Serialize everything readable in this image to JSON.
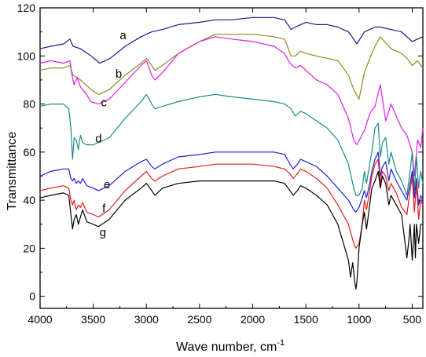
{
  "chart_data": {
    "type": "line",
    "title": "",
    "xlabel": "Wave number, cm",
    "xlabel_superscript": "-1",
    "ylabel": "Transmittance",
    "xlim": [
      4000,
      400
    ],
    "ylim": [
      -5,
      120
    ],
    "x_ticks": [
      4000,
      3500,
      3000,
      2500,
      2000,
      1500,
      1000,
      500
    ],
    "y_ticks": [
      0,
      20,
      40,
      60,
      80,
      100,
      120
    ],
    "grid": false,
    "legend": "none",
    "series": [
      {
        "label": "a",
        "color": "#1a1a8c",
        "label_at": [
          3220,
          107
        ],
        "x": [
          4000,
          3900,
          3780,
          3720,
          3690,
          3620,
          3520,
          3440,
          3340,
          3200,
          3050,
          2950,
          2850,
          2700,
          2500,
          2350,
          2200,
          2000,
          1800,
          1700,
          1640,
          1600,
          1550,
          1500,
          1400,
          1300,
          1200,
          1100,
          1050,
          1020,
          950,
          900,
          850,
          800,
          700,
          600,
          550,
          500,
          450,
          400
        ],
        "y": [
          103,
          104,
          105,
          107,
          104,
          103,
          100,
          97,
          99,
          104,
          108,
          110,
          111,
          113,
          114,
          115,
          115,
          116,
          116,
          115,
          111,
          112,
          113,
          114,
          113,
          113,
          112,
          110,
          107,
          105,
          110,
          111,
          112,
          112,
          111,
          110,
          108,
          106,
          107,
          108
        ]
      },
      {
        "label": "b",
        "color": "#8f8a1e",
        "label_at": [
          3260,
          91
        ],
        "x": [
          4000,
          3900,
          3780,
          3720,
          3690,
          3620,
          3520,
          3450,
          3350,
          3200,
          3050,
          3000,
          2950,
          2920,
          2850,
          2700,
          2500,
          2350,
          2200,
          2000,
          1800,
          1700,
          1640,
          1600,
          1550,
          1500,
          1400,
          1300,
          1200,
          1100,
          1050,
          1000,
          950,
          900,
          850,
          800,
          700,
          600,
          550,
          500,
          450,
          400
        ],
        "y": [
          94,
          95,
          95,
          96,
          92,
          90,
          86,
          84,
          86,
          92,
          97,
          99,
          96,
          94,
          96,
          101,
          106,
          109,
          109,
          109,
          108,
          107,
          100,
          100,
          102,
          101,
          100,
          99,
          98,
          92,
          86,
          82,
          93,
          99,
          104,
          108,
          103,
          101,
          99,
          96,
          98,
          95
        ]
      },
      {
        "label": "c",
        "color": "#e01ee0",
        "label_at": [
          3400,
          79
        ],
        "x": [
          4000,
          3900,
          3780,
          3720,
          3700,
          3680,
          3650,
          3620,
          3580,
          3520,
          3450,
          3350,
          3200,
          3050,
          3000,
          2950,
          2920,
          2850,
          2700,
          2500,
          2350,
          2200,
          2000,
          1800,
          1700,
          1650,
          1600,
          1550,
          1500,
          1400,
          1300,
          1200,
          1100,
          1050,
          1020,
          950,
          900,
          850,
          800,
          750,
          700,
          600,
          550,
          500,
          480,
          450,
          420,
          400
        ],
        "y": [
          97,
          98,
          97,
          98,
          92,
          88,
          91,
          87,
          85,
          81,
          80,
          82,
          89,
          96,
          98,
          92,
          90,
          93,
          101,
          106,
          108,
          107,
          106,
          104,
          101,
          97,
          95,
          96,
          94,
          90,
          88,
          84,
          74,
          65,
          63,
          69,
          76,
          79,
          88,
          73,
          80,
          70,
          67,
          60,
          50,
          65,
          62,
          70
        ]
      },
      {
        "label": "d",
        "color": "#1a8a8a",
        "label_at": [
          3450,
          64
        ],
        "x": [
          4000,
          3900,
          3780,
          3730,
          3710,
          3695,
          3680,
          3660,
          3640,
          3620,
          3600,
          3560,
          3500,
          3450,
          3350,
          3200,
          3050,
          3000,
          2950,
          2920,
          2850,
          2700,
          2500,
          2350,
          2200,
          2000,
          1800,
          1700,
          1640,
          1600,
          1550,
          1500,
          1400,
          1300,
          1200,
          1100,
          1050,
          1030,
          1000,
          970,
          950,
          930,
          900,
          880,
          850,
          820,
          800,
          780,
          750,
          720,
          700,
          650,
          600,
          550,
          520,
          500,
          480,
          460,
          440,
          420,
          400
        ],
        "y": [
          79,
          80,
          80,
          78,
          70,
          57,
          66,
          65,
          61,
          67,
          64,
          63,
          63,
          64,
          66,
          74,
          81,
          84,
          80,
          78,
          79,
          81,
          83,
          84,
          83,
          82,
          81,
          80,
          78,
          75,
          77,
          76,
          73,
          70,
          65,
          55,
          45,
          42,
          42,
          45,
          52,
          47,
          55,
          60,
          70,
          72,
          58,
          64,
          66,
          55,
          60,
          52,
          48,
          42,
          52,
          60,
          44,
          58,
          45,
          52,
          47
        ]
      },
      {
        "label": "e",
        "color": "#1e1ee0",
        "label_at": [
          3370,
          45
        ],
        "x": [
          4000,
          3900,
          3780,
          3730,
          3710,
          3695,
          3680,
          3660,
          3640,
          3620,
          3600,
          3560,
          3500,
          3450,
          3350,
          3200,
          3050,
          3000,
          2950,
          2920,
          2850,
          2700,
          2500,
          2350,
          2200,
          2000,
          1800,
          1700,
          1650,
          1620,
          1580,
          1550,
          1500,
          1400,
          1300,
          1200,
          1100,
          1050,
          1030,
          1000,
          970,
          950,
          930,
          900,
          880,
          850,
          820,
          800,
          780,
          750,
          720,
          700,
          650,
          600,
          550,
          520,
          500,
          480,
          460,
          440,
          420,
          400
        ],
        "y": [
          50,
          52,
          53,
          53,
          49,
          48,
          49,
          47,
          48,
          47,
          49,
          46,
          45,
          44,
          46,
          52,
          56,
          57,
          54,
          53,
          55,
          58,
          59,
          60,
          60,
          60,
          60,
          59,
          55,
          53,
          55,
          57,
          56,
          54,
          50,
          45,
          40,
          36,
          35,
          37,
          41,
          44,
          41,
          47,
          52,
          57,
          60,
          50,
          54,
          56,
          48,
          53,
          48,
          44,
          40,
          47,
          52,
          41,
          49,
          38,
          42,
          40
        ]
      },
      {
        "label": "f",
        "color": "#e01e1e",
        "label_at": [
          3400,
          35
        ],
        "x": [
          4000,
          3900,
          3780,
          3730,
          3710,
          3695,
          3680,
          3660,
          3640,
          3620,
          3600,
          3560,
          3500,
          3450,
          3350,
          3200,
          3050,
          3000,
          2950,
          2920,
          2850,
          2700,
          2500,
          2350,
          2200,
          2000,
          1800,
          1700,
          1650,
          1620,
          1580,
          1550,
          1500,
          1400,
          1300,
          1200,
          1100,
          1050,
          1030,
          1000,
          970,
          950,
          930,
          900,
          880,
          850,
          820,
          800,
          780,
          750,
          720,
          700,
          650,
          600,
          550,
          520,
          500,
          480,
          460,
          440,
          420,
          400
        ],
        "y": [
          44,
          45,
          46,
          45,
          40,
          38,
          40,
          36,
          38,
          37,
          39,
          35,
          34,
          33,
          36,
          44,
          50,
          52,
          49,
          48,
          50,
          53,
          54,
          55,
          55,
          55,
          54,
          53,
          51,
          49,
          51,
          53,
          52,
          49,
          45,
          38,
          30,
          22,
          20,
          22,
          30,
          40,
          36,
          44,
          50,
          55,
          57,
          47,
          52,
          50,
          44,
          47,
          43,
          37,
          34,
          44,
          50,
          35,
          47,
          32,
          40,
          38
        ]
      },
      {
        "label": "g",
        "color": "#000000",
        "label_at": [
          3410,
          25
        ],
        "x": [
          4000,
          3900,
          3780,
          3730,
          3710,
          3695,
          3680,
          3660,
          3640,
          3620,
          3600,
          3560,
          3500,
          3450,
          3350,
          3200,
          3050,
          3000,
          2950,
          2920,
          2850,
          2700,
          2500,
          2350,
          2200,
          2000,
          1800,
          1700,
          1650,
          1620,
          1580,
          1550,
          1500,
          1400,
          1300,
          1200,
          1100,
          1080,
          1060,
          1040,
          1030,
          1020,
          1000,
          970,
          950,
          930,
          900,
          880,
          850,
          820,
          800,
          780,
          750,
          720,
          700,
          650,
          600,
          550,
          530,
          520,
          500,
          490,
          480,
          470,
          460,
          440,
          420,
          400
        ],
        "y": [
          41,
          42,
          43,
          42,
          34,
          28,
          32,
          34,
          30,
          33,
          36,
          31,
          30,
          29,
          32,
          40,
          45,
          47,
          44,
          42,
          45,
          47,
          48,
          48,
          48,
          48,
          48,
          47,
          44,
          42,
          44,
          46,
          45,
          42,
          38,
          30,
          15,
          8,
          14,
          6,
          3,
          6,
          20,
          30,
          35,
          28,
          38,
          45,
          48,
          52,
          45,
          50,
          47,
          38,
          42,
          38,
          34,
          16,
          24,
          30,
          15,
          22,
          30,
          16,
          30,
          22,
          30,
          30
        ]
      }
    ]
  }
}
